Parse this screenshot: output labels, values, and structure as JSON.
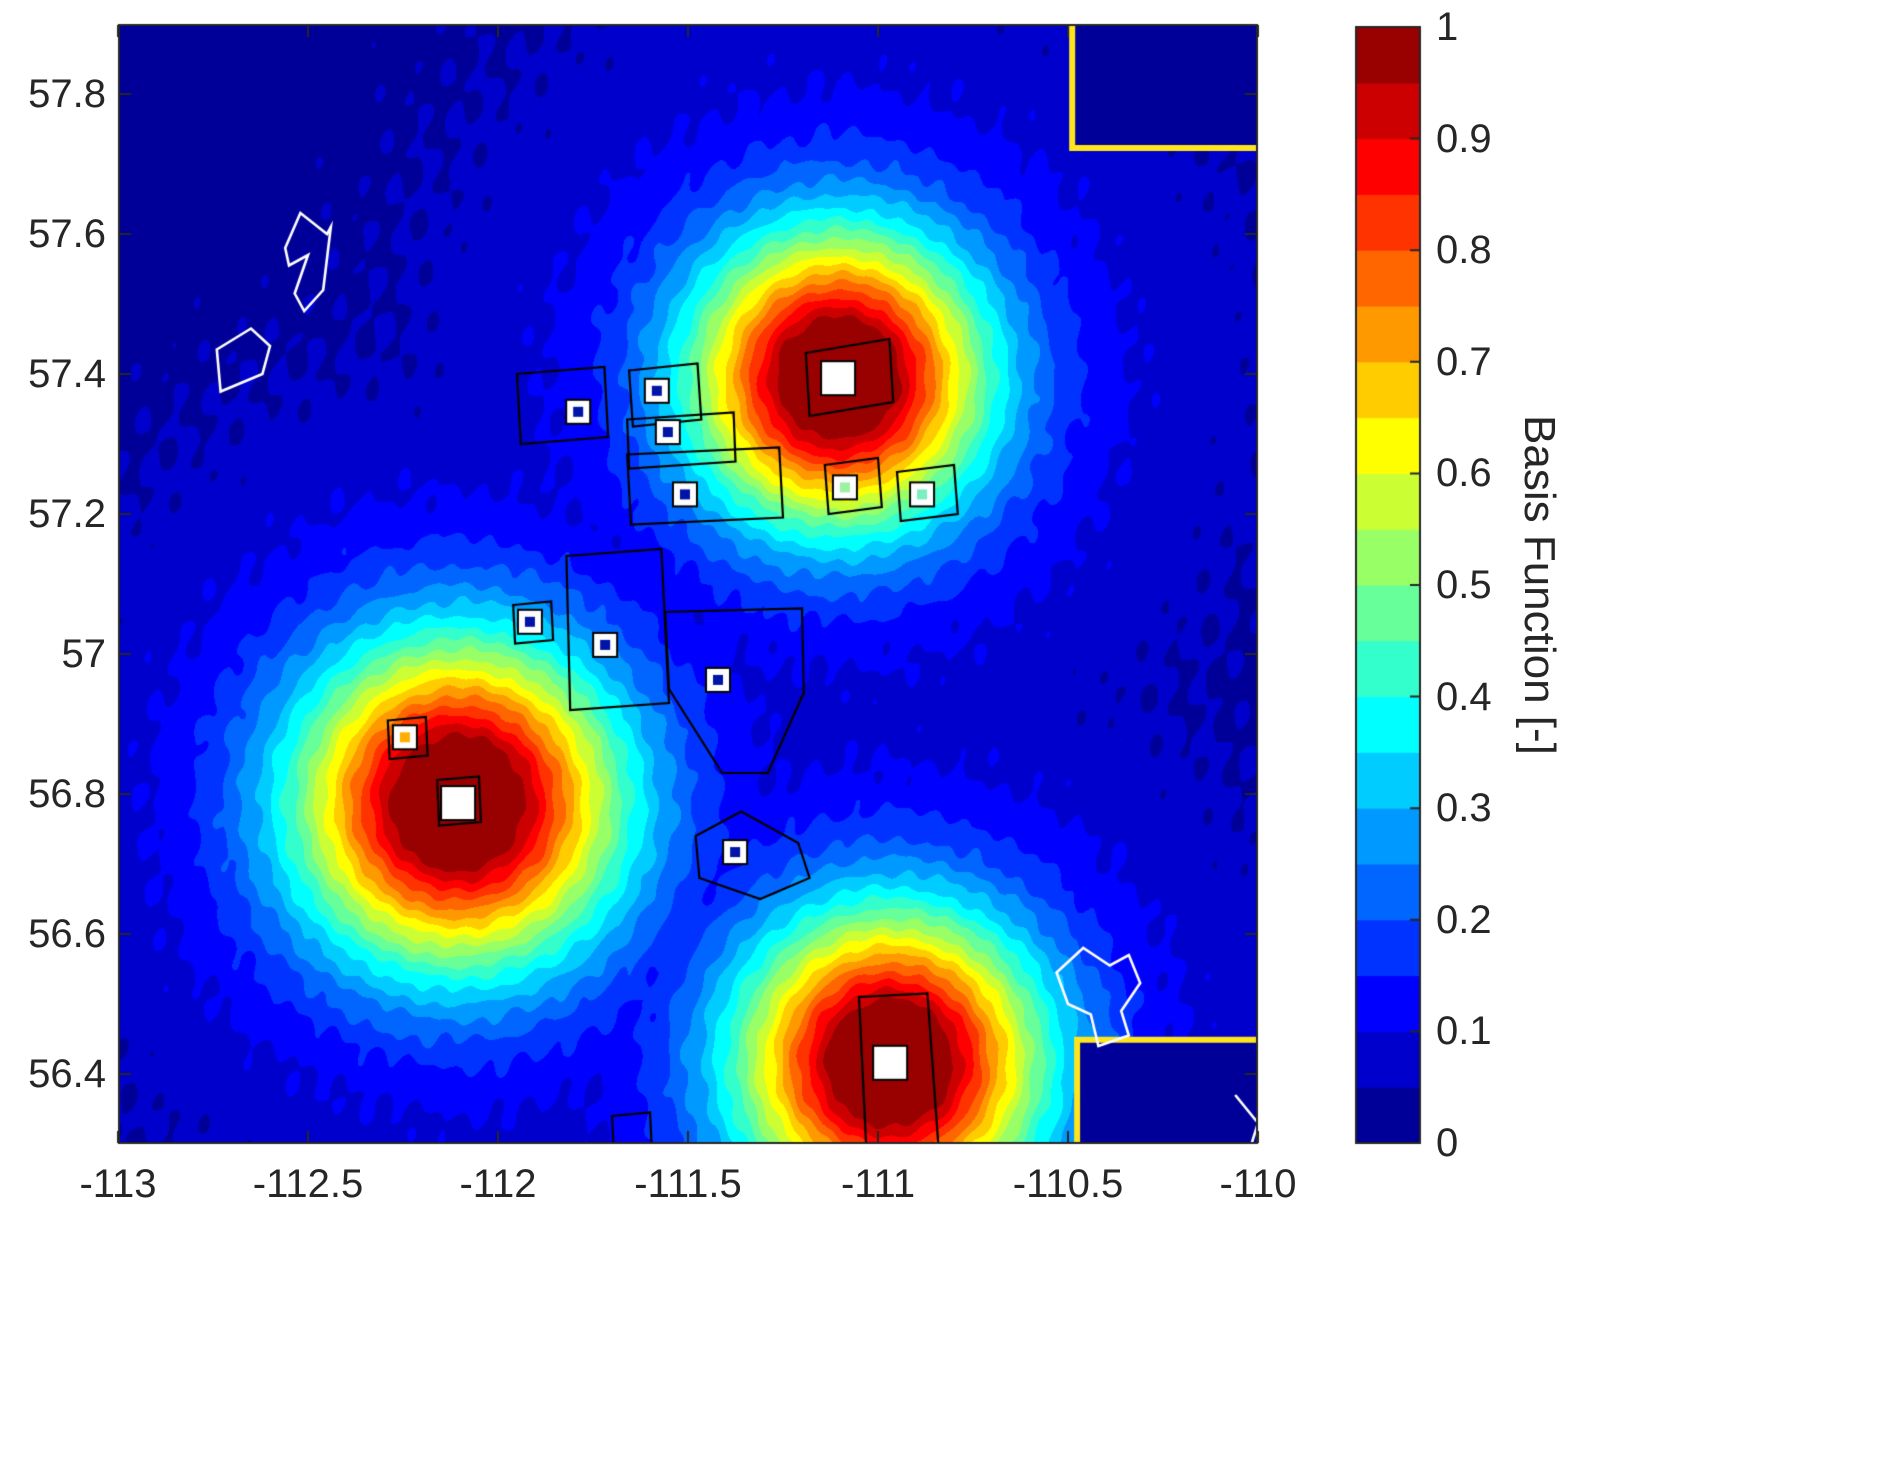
{
  "figure": {
    "background_color": "#ffffff",
    "axis_text_color": "#262626"
  },
  "chart_data": {
    "type": "heatmap",
    "subtype": "filled-contour-radial-basis-functions",
    "title": "",
    "xlabel": "",
    "ylabel": "",
    "colorbar_label": "Basis Function [-]",
    "colormap": "jet",
    "grid": false,
    "legend": "none",
    "contour_levels": 20,
    "xlim": [
      -113,
      -110
    ],
    "ylim": [
      56.3,
      57.9
    ],
    "xticks": [
      -113,
      -112.5,
      -112,
      -111.5,
      -111,
      -110.5,
      -110
    ],
    "xtick_labels": [
      "-113",
      "-112.5",
      "-112",
      "-111.5",
      "-111",
      "-110.5",
      "-110"
    ],
    "yticks": [
      56.4,
      56.6,
      56.8,
      57,
      57.2,
      57.4,
      57.6,
      57.8
    ],
    "ytick_labels": [
      "56.4",
      "56.6",
      "56.8",
      "57",
      "57.2",
      "57.4",
      "57.6",
      "57.8"
    ],
    "colorbar_range": [
      0,
      1
    ],
    "colorbar_ticks": [
      0,
      0.1,
      0.2,
      0.3,
      0.4,
      0.5,
      0.6,
      0.7,
      0.8,
      0.9,
      1
    ],
    "colorbar_tick_labels": [
      "0",
      "0.1",
      "0.2",
      "0.3",
      "0.4",
      "0.5",
      "0.6",
      "0.7",
      "0.8",
      "0.9",
      "1"
    ],
    "lon_metric_scale": 0.545,
    "basis_centers": [
      {
        "lon": -111.105,
        "lat": 57.394,
        "sigma": 0.145,
        "amplitude": 1.0
      },
      {
        "lon": -112.105,
        "lat": 56.787,
        "sigma": 0.16,
        "amplitude": 1.0
      },
      {
        "lon": -110.968,
        "lat": 56.416,
        "sigma": 0.15,
        "amplitude": 1.0
      }
    ],
    "broad_component": {
      "amplitude": 0.12,
      "sigma": 0.5
    },
    "masked_regions": [
      {
        "lon_min": -110.489,
        "lat_min": 57.723,
        "lat_max": 58.5,
        "value": 0.02
      },
      {
        "lon_min": -110.476,
        "lat_min": 55.9,
        "lat_max": 56.449,
        "value": 0.02
      }
    ],
    "colors": {
      "boundary_yellow": "#ffe51c",
      "lease_outline": "#000000",
      "region_outline": "#ffffff",
      "tick_text": "#262626",
      "marker_face": "#ffffff",
      "marker_edge": "#000000"
    },
    "boundary_lines_yellow": [
      [
        [
          -110.489,
          57.91
        ],
        [
          -110.489,
          57.723
        ],
        [
          -109.99,
          57.723
        ]
      ],
      [
        [
          -110.476,
          56.29
        ],
        [
          -110.476,
          56.449
        ],
        [
          -109.99,
          56.449
        ]
      ]
    ],
    "lease_polygons_black": [
      [
        [
          -111.19,
          57.43
        ],
        [
          -110.97,
          57.45
        ],
        [
          -110.96,
          57.36
        ],
        [
          -111.18,
          57.34
        ]
      ],
      [
        [
          -111.95,
          57.4
        ],
        [
          -111.72,
          57.41
        ],
        [
          -111.71,
          57.31
        ],
        [
          -111.94,
          57.3
        ]
      ],
      [
        [
          -111.655,
          57.405
        ],
        [
          -111.475,
          57.415
        ],
        [
          -111.465,
          57.335
        ],
        [
          -111.645,
          57.325
        ]
      ],
      [
        [
          -111.66,
          57.335
        ],
        [
          -111.38,
          57.345
        ],
        [
          -111.375,
          57.275
        ],
        [
          -111.655,
          57.265
        ]
      ],
      [
        [
          -111.66,
          57.285
        ],
        [
          -111.26,
          57.295
        ],
        [
          -111.25,
          57.195
        ],
        [
          -111.65,
          57.185
        ]
      ],
      [
        [
          -111.14,
          57.27
        ],
        [
          -111.0,
          57.28
        ],
        [
          -110.99,
          57.21
        ],
        [
          -111.13,
          57.2
        ]
      ],
      [
        [
          -110.95,
          57.26
        ],
        [
          -110.8,
          57.27
        ],
        [
          -110.79,
          57.2
        ],
        [
          -110.94,
          57.19
        ]
      ],
      [
        [
          -111.82,
          57.14
        ],
        [
          -111.57,
          57.15
        ],
        [
          -111.55,
          56.93
        ],
        [
          -111.81,
          56.92
        ]
      ],
      [
        [
          -111.96,
          57.07
        ],
        [
          -111.86,
          57.075
        ],
        [
          -111.855,
          57.02
        ],
        [
          -111.955,
          57.015
        ]
      ],
      [
        [
          -111.56,
          57.06
        ],
        [
          -111.2,
          57.065
        ],
        [
          -111.195,
          56.945
        ],
        [
          -111.29,
          56.83
        ],
        [
          -111.41,
          56.83
        ],
        [
          -111.55,
          56.95
        ]
      ],
      [
        [
          -112.29,
          56.905
        ],
        [
          -112.19,
          56.91
        ],
        [
          -112.185,
          56.855
        ],
        [
          -112.285,
          56.85
        ]
      ],
      [
        [
          -112.16,
          56.82
        ],
        [
          -112.05,
          56.825
        ],
        [
          -112.045,
          56.76
        ],
        [
          -112.155,
          56.755
        ]
      ],
      [
        [
          -111.48,
          56.74
        ],
        [
          -111.36,
          56.775
        ],
        [
          -111.21,
          56.73
        ],
        [
          -111.18,
          56.68
        ],
        [
          -111.31,
          56.65
        ],
        [
          -111.47,
          56.68
        ]
      ],
      [
        [
          -111.05,
          56.51
        ],
        [
          -110.87,
          56.515
        ],
        [
          -110.84,
          56.29
        ],
        [
          -111.03,
          56.285
        ]
      ],
      [
        [
          -111.7,
          56.34
        ],
        [
          -111.6,
          56.345
        ],
        [
          -111.595,
          56.29
        ],
        [
          -111.695,
          56.285
        ]
      ]
    ],
    "outline_polygons_white": [
      [
        [
          -112.56,
          57.58
        ],
        [
          -112.52,
          57.63
        ],
        [
          -112.45,
          57.6
        ],
        [
          -112.44,
          57.61
        ],
        [
          -112.46,
          57.52
        ],
        [
          -112.51,
          57.49
        ],
        [
          -112.535,
          57.515
        ],
        [
          -112.5,
          57.57
        ],
        [
          -112.55,
          57.555
        ]
      ],
      [
        [
          -112.74,
          57.435
        ],
        [
          -112.65,
          57.465
        ],
        [
          -112.6,
          57.44
        ],
        [
          -112.62,
          57.4
        ],
        [
          -112.73,
          57.375
        ]
      ],
      [
        [
          -110.53,
          56.545
        ],
        [
          -110.46,
          56.58
        ],
        [
          -110.39,
          56.555
        ],
        [
          -110.34,
          56.57
        ],
        [
          -110.31,
          56.53
        ],
        [
          -110.36,
          56.49
        ],
        [
          -110.34,
          56.455
        ],
        [
          -110.42,
          56.44
        ],
        [
          -110.44,
          56.485
        ],
        [
          -110.5,
          56.5
        ]
      ]
    ],
    "outline_polylines_white": [
      [
        [
          -110.06,
          56.37
        ],
        [
          -110.0,
          56.33
        ],
        [
          -110.02,
          56.295
        ]
      ]
    ],
    "well_markers_large": [
      {
        "lon": -111.105,
        "lat": 57.394
      },
      {
        "lon": -112.105,
        "lat": 56.787
      },
      {
        "lon": -110.968,
        "lat": 56.416
      }
    ],
    "well_markers_small": [
      {
        "lon": -111.789,
        "lat": 57.346,
        "dot_color": "#0014a8"
      },
      {
        "lon": -111.582,
        "lat": 57.376,
        "dot_color": "#0014a8"
      },
      {
        "lon": -111.553,
        "lat": 57.317,
        "dot_color": "#0014a8"
      },
      {
        "lon": -111.508,
        "lat": 57.228,
        "dot_color": "#0014a8"
      },
      {
        "lon": -111.087,
        "lat": 57.238,
        "dot_color": "#9cf2a0"
      },
      {
        "lon": -110.884,
        "lat": 57.228,
        "dot_color": "#7deec0"
      },
      {
        "lon": -111.916,
        "lat": 57.046,
        "dot_color": "#0014a8"
      },
      {
        "lon": -111.718,
        "lat": 57.013,
        "dot_color": "#0014a8"
      },
      {
        "lon": -111.421,
        "lat": 56.963,
        "dot_color": "#0014a8"
      },
      {
        "lon": -112.245,
        "lat": 56.881,
        "dot_color": "#ffae00"
      },
      {
        "lon": -111.376,
        "lat": 56.717,
        "dot_color": "#0014a8"
      }
    ]
  }
}
